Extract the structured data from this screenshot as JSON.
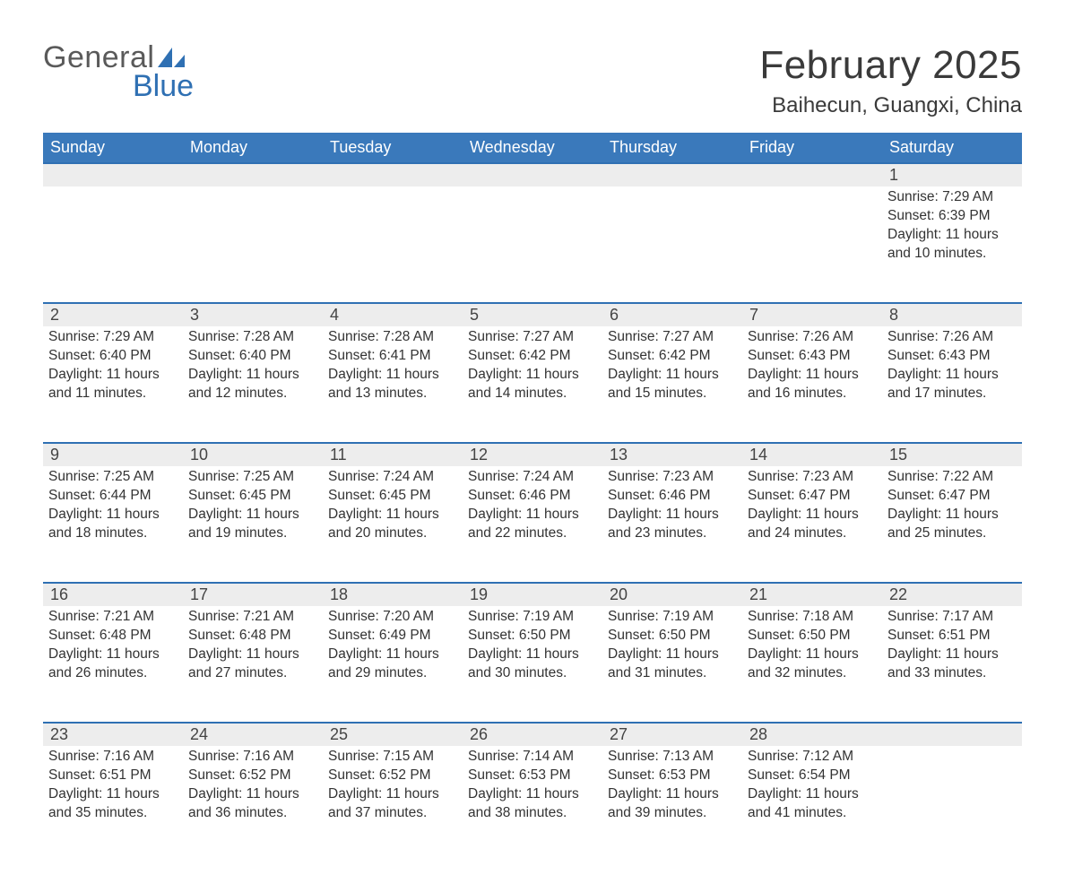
{
  "logo": {
    "word1": "General",
    "word2": "Blue"
  },
  "title": "February 2025",
  "location": "Baihecun, Guangxi, China",
  "colors": {
    "header_bg": "#3a79bb",
    "band_bg": "#ededed",
    "band_border": "#2f70b3",
    "text": "#222222",
    "title": "#3a3a3a",
    "logo_gray": "#5a5a5a",
    "logo_blue": "#2f70b3",
    "page_bg": "#ffffff"
  },
  "typography": {
    "title_fontsize_pt": 33,
    "location_fontsize_pt": 18,
    "header_fontsize_pt": 14,
    "daynum_fontsize_pt": 14,
    "body_fontsize_pt": 12,
    "font_family": "Helvetica Neue, Arial, sans-serif"
  },
  "weekdays": [
    "Sunday",
    "Monday",
    "Tuesday",
    "Wednesday",
    "Thursday",
    "Friday",
    "Saturday"
  ],
  "labels": {
    "sunrise": "Sunrise",
    "sunset": "Sunset",
    "daylight": "Daylight"
  },
  "first_weekday_index": 6,
  "days": [
    {
      "n": 1,
      "sunrise": "7:29 AM",
      "sunset": "6:39 PM",
      "daylight": "11 hours and 10 minutes."
    },
    {
      "n": 2,
      "sunrise": "7:29 AM",
      "sunset": "6:40 PM",
      "daylight": "11 hours and 11 minutes."
    },
    {
      "n": 3,
      "sunrise": "7:28 AM",
      "sunset": "6:40 PM",
      "daylight": "11 hours and 12 minutes."
    },
    {
      "n": 4,
      "sunrise": "7:28 AM",
      "sunset": "6:41 PM",
      "daylight": "11 hours and 13 minutes."
    },
    {
      "n": 5,
      "sunrise": "7:27 AM",
      "sunset": "6:42 PM",
      "daylight": "11 hours and 14 minutes."
    },
    {
      "n": 6,
      "sunrise": "7:27 AM",
      "sunset": "6:42 PM",
      "daylight": "11 hours and 15 minutes."
    },
    {
      "n": 7,
      "sunrise": "7:26 AM",
      "sunset": "6:43 PM",
      "daylight": "11 hours and 16 minutes."
    },
    {
      "n": 8,
      "sunrise": "7:26 AM",
      "sunset": "6:43 PM",
      "daylight": "11 hours and 17 minutes."
    },
    {
      "n": 9,
      "sunrise": "7:25 AM",
      "sunset": "6:44 PM",
      "daylight": "11 hours and 18 minutes."
    },
    {
      "n": 10,
      "sunrise": "7:25 AM",
      "sunset": "6:45 PM",
      "daylight": "11 hours and 19 minutes."
    },
    {
      "n": 11,
      "sunrise": "7:24 AM",
      "sunset": "6:45 PM",
      "daylight": "11 hours and 20 minutes."
    },
    {
      "n": 12,
      "sunrise": "7:24 AM",
      "sunset": "6:46 PM",
      "daylight": "11 hours and 22 minutes."
    },
    {
      "n": 13,
      "sunrise": "7:23 AM",
      "sunset": "6:46 PM",
      "daylight": "11 hours and 23 minutes."
    },
    {
      "n": 14,
      "sunrise": "7:23 AM",
      "sunset": "6:47 PM",
      "daylight": "11 hours and 24 minutes."
    },
    {
      "n": 15,
      "sunrise": "7:22 AM",
      "sunset": "6:47 PM",
      "daylight": "11 hours and 25 minutes."
    },
    {
      "n": 16,
      "sunrise": "7:21 AM",
      "sunset": "6:48 PM",
      "daylight": "11 hours and 26 minutes."
    },
    {
      "n": 17,
      "sunrise": "7:21 AM",
      "sunset": "6:48 PM",
      "daylight": "11 hours and 27 minutes."
    },
    {
      "n": 18,
      "sunrise": "7:20 AM",
      "sunset": "6:49 PM",
      "daylight": "11 hours and 29 minutes."
    },
    {
      "n": 19,
      "sunrise": "7:19 AM",
      "sunset": "6:50 PM",
      "daylight": "11 hours and 30 minutes."
    },
    {
      "n": 20,
      "sunrise": "7:19 AM",
      "sunset": "6:50 PM",
      "daylight": "11 hours and 31 minutes."
    },
    {
      "n": 21,
      "sunrise": "7:18 AM",
      "sunset": "6:50 PM",
      "daylight": "11 hours and 32 minutes."
    },
    {
      "n": 22,
      "sunrise": "7:17 AM",
      "sunset": "6:51 PM",
      "daylight": "11 hours and 33 minutes."
    },
    {
      "n": 23,
      "sunrise": "7:16 AM",
      "sunset": "6:51 PM",
      "daylight": "11 hours and 35 minutes."
    },
    {
      "n": 24,
      "sunrise": "7:16 AM",
      "sunset": "6:52 PM",
      "daylight": "11 hours and 36 minutes."
    },
    {
      "n": 25,
      "sunrise": "7:15 AM",
      "sunset": "6:52 PM",
      "daylight": "11 hours and 37 minutes."
    },
    {
      "n": 26,
      "sunrise": "7:14 AM",
      "sunset": "6:53 PM",
      "daylight": "11 hours and 38 minutes."
    },
    {
      "n": 27,
      "sunrise": "7:13 AM",
      "sunset": "6:53 PM",
      "daylight": "11 hours and 39 minutes."
    },
    {
      "n": 28,
      "sunrise": "7:12 AM",
      "sunset": "6:54 PM",
      "daylight": "11 hours and 41 minutes."
    }
  ]
}
